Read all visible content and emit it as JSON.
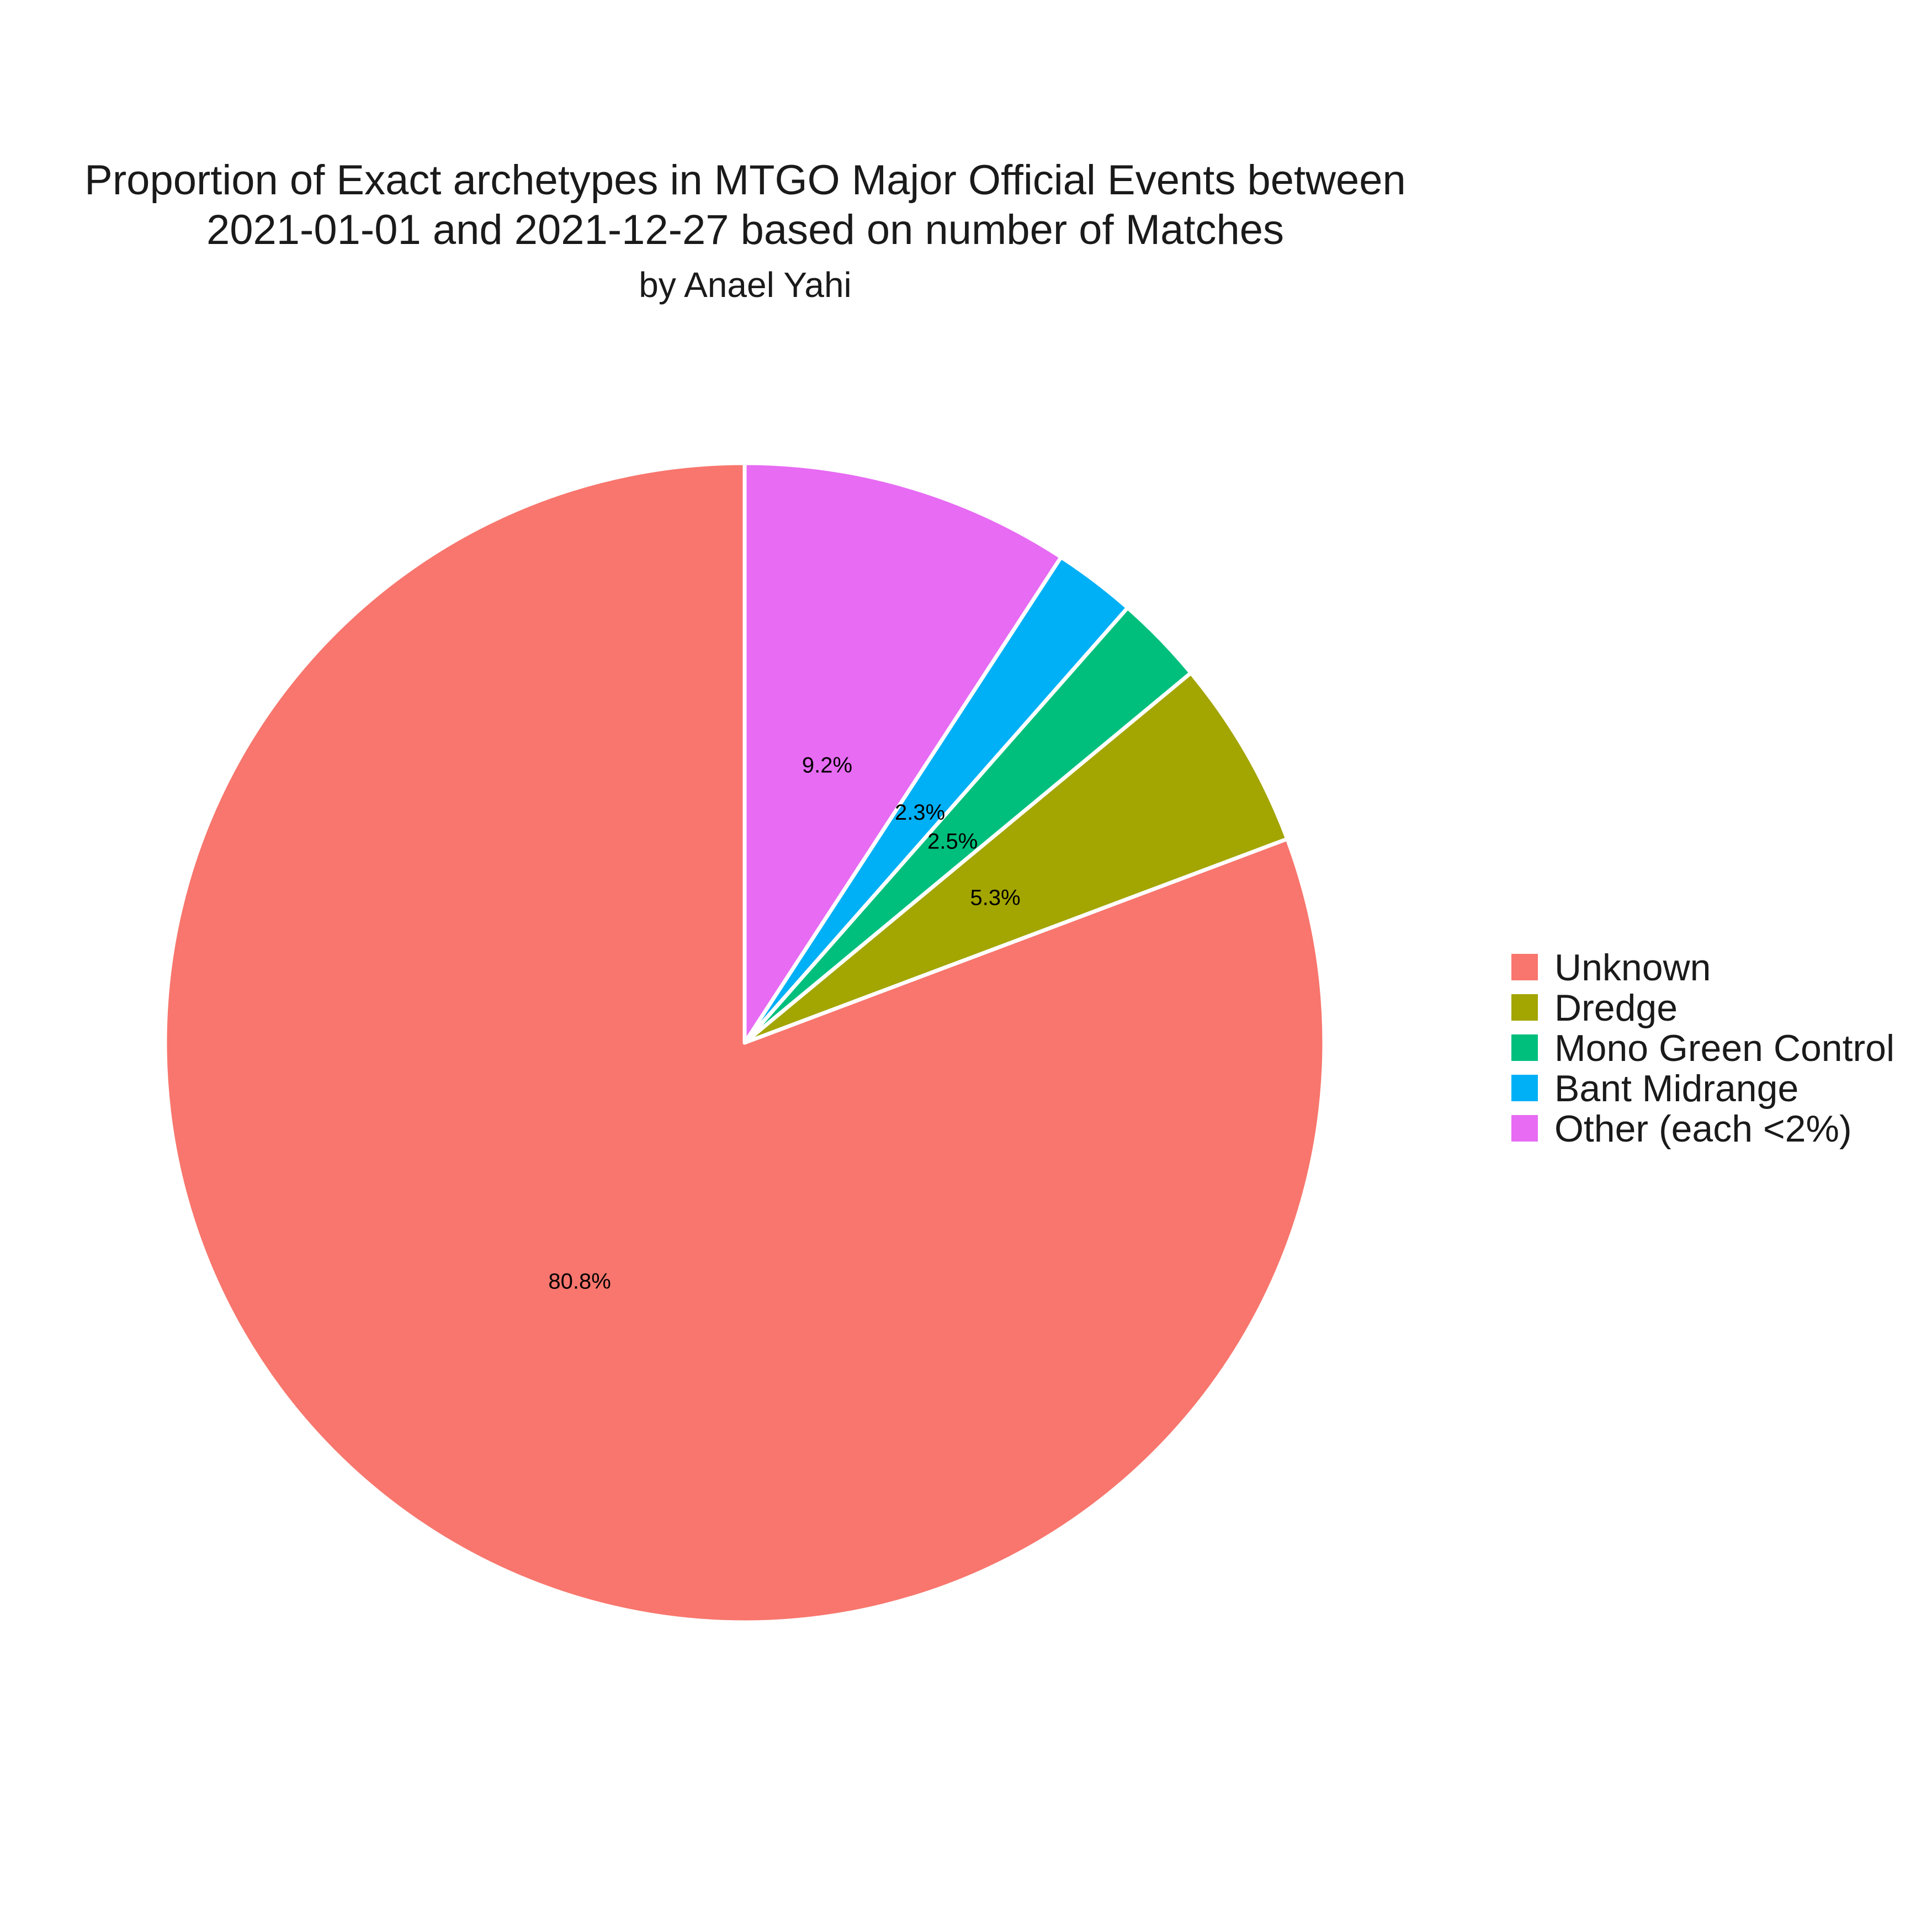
{
  "chart_data": {
    "type": "pie",
    "title": "Proportion of Exact archetypes in MTGO Major Official Events between 2021-01-01 and 2021-12-27 based on number of Matches",
    "title_lines": [
      "Proportion of Exact archetypes in MTGO Major Official Events between",
      "2021-01-01 and 2021-12-27 based on number of Matches"
    ],
    "subtitle": "by Anael Yahi",
    "direction": "counterclockwise",
    "start": "top",
    "slices": [
      {
        "name": "Unknown",
        "value": 80.8,
        "label": "80.8%",
        "color": "#F8766D"
      },
      {
        "name": "Dredge",
        "value": 5.3,
        "label": "5.3%",
        "color": "#A3A500"
      },
      {
        "name": "Mono Green Control",
        "value": 2.5,
        "label": "2.5%",
        "color": "#00BF7D"
      },
      {
        "name": "Bant Midrange",
        "value": 2.3,
        "label": "2.3%",
        "color": "#00B0F6"
      },
      {
        "name": "Other (each <2%)",
        "value": 9.2,
        "label": "9.2%",
        "color": "#E76BF3"
      }
    ],
    "legend_placement": "right"
  }
}
